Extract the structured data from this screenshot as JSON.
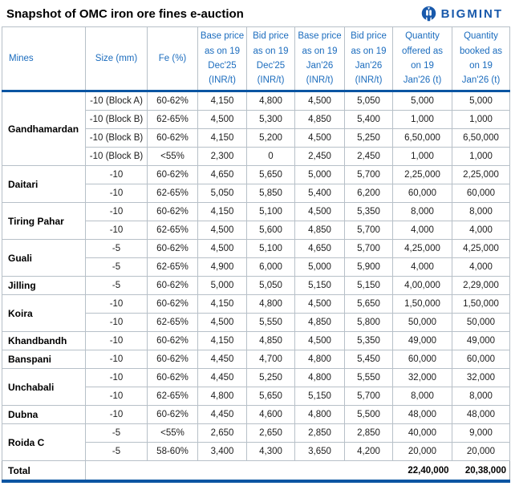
{
  "page": {
    "title": "Snapshot of OMC iron ore fines e-auction"
  },
  "logo": {
    "text": "BIGMINT",
    "color": "#1859ab"
  },
  "colors": {
    "header_text": "#1b6cbe",
    "thick_border": "#0b55a2",
    "inner_border": "#b7c0c8",
    "body_text": "#1d1d1d"
  },
  "table": {
    "headers": {
      "mines": "Mines",
      "size": "Size (mm)",
      "fe": "Fe (%)",
      "base_dec": "Base price\nas on 19\nDec'25\n(INR/t)",
      "bid_dec": "Bid price\nas on 19\nDec'25\n(INR/t)",
      "base_jan": "Base price\nas on 19\nJan'26\n(INR/t)",
      "bid_jan": "Bid price\nas on 19\nJan'26\n(INR/t)",
      "qty_offered": "Quantity\noffered as\non 19\nJan'26 (t)",
      "qty_booked": "Quantity\nbooked as\non 19\nJan'26 (t)"
    },
    "rows": [
      {
        "mine": "Gandhamardan",
        "mine_span": 4,
        "size": "-10 (Block A)",
        "fe": "60-62%",
        "base_dec": "4,150",
        "bid_dec": "4,800",
        "base_jan": "4,500",
        "bid_jan": "5,050",
        "qty_offered": "5,000",
        "qty_booked": "5,000"
      },
      {
        "size": "-10 (Block B)",
        "fe": "62-65%",
        "base_dec": "4,500",
        "bid_dec": "5,300",
        "base_jan": "4,850",
        "bid_jan": "5,400",
        "qty_offered": "1,000",
        "qty_booked": "1,000"
      },
      {
        "size": "-10 (Block B)",
        "fe": "60-62%",
        "base_dec": "4,150",
        "bid_dec": "5,200",
        "base_jan": "4,500",
        "bid_jan": "5,250",
        "qty_offered": "6,50,000",
        "qty_booked": "6,50,000"
      },
      {
        "size": "-10 (Block B)",
        "fe": "<55%",
        "base_dec": "2,300",
        "bid_dec": "0",
        "base_jan": "2,450",
        "bid_jan": "2,450",
        "qty_offered": "1,000",
        "qty_booked": "1,000"
      },
      {
        "mine": "Daitari",
        "mine_span": 2,
        "size": "-10",
        "fe": "60-62%",
        "base_dec": "4,650",
        "bid_dec": "5,650",
        "base_jan": "5,000",
        "bid_jan": "5,700",
        "qty_offered": "2,25,000",
        "qty_booked": "2,25,000"
      },
      {
        "size": "-10",
        "fe": "62-65%",
        "base_dec": "5,050",
        "bid_dec": "5,850",
        "base_jan": "5,400",
        "bid_jan": "6,200",
        "qty_offered": "60,000",
        "qty_booked": "60,000"
      },
      {
        "mine": "Tiring Pahar",
        "mine_span": 2,
        "size": "-10",
        "fe": "60-62%",
        "base_dec": "4,150",
        "bid_dec": "5,100",
        "base_jan": "4,500",
        "bid_jan": "5,350",
        "qty_offered": "8,000",
        "qty_booked": "8,000"
      },
      {
        "size": "-10",
        "fe": "62-65%",
        "base_dec": "4,500",
        "bid_dec": "5,600",
        "base_jan": "4,850",
        "bid_jan": "5,700",
        "qty_offered": "4,000",
        "qty_booked": "4,000"
      },
      {
        "mine": "Guali",
        "mine_span": 2,
        "size": "-5",
        "fe": "60-62%",
        "base_dec": "4,500",
        "bid_dec": "5,100",
        "base_jan": "4,650",
        "bid_jan": "5,700",
        "qty_offered": "4,25,000",
        "qty_booked": "4,25,000"
      },
      {
        "size": "-5",
        "fe": "62-65%",
        "base_dec": "4,900",
        "bid_dec": "6,000",
        "base_jan": "5,000",
        "bid_jan": "5,900",
        "qty_offered": "4,000",
        "qty_booked": "4,000"
      },
      {
        "mine": "Jilling",
        "mine_span": 1,
        "size": "-5",
        "fe": "60-62%",
        "base_dec": "5,000",
        "bid_dec": "5,050",
        "base_jan": "5,150",
        "bid_jan": "5,150",
        "qty_offered": "4,00,000",
        "qty_booked": "2,29,000"
      },
      {
        "mine": "Koira",
        "mine_span": 2,
        "size": "-10",
        "fe": "60-62%",
        "base_dec": "4,150",
        "bid_dec": "4,800",
        "base_jan": "4,500",
        "bid_jan": "5,650",
        "qty_offered": "1,50,000",
        "qty_booked": "1,50,000"
      },
      {
        "size": "-10",
        "fe": "62-65%",
        "base_dec": "4,500",
        "bid_dec": "5,550",
        "base_jan": "4,850",
        "bid_jan": "5,800",
        "qty_offered": "50,000",
        "qty_booked": "50,000"
      },
      {
        "mine": "Khandbandh",
        "mine_span": 1,
        "size": "-10",
        "fe": "60-62%",
        "base_dec": "4,150",
        "bid_dec": "4,850",
        "base_jan": "4,500",
        "bid_jan": "5,350",
        "qty_offered": "49,000",
        "qty_booked": "49,000"
      },
      {
        "mine": "Banspani",
        "mine_span": 1,
        "size": "-10",
        "fe": "60-62%",
        "base_dec": "4,450",
        "bid_dec": "4,700",
        "base_jan": "4,800",
        "bid_jan": "5,450",
        "qty_offered": "60,000",
        "qty_booked": "60,000"
      },
      {
        "mine": "Unchabali",
        "mine_span": 2,
        "size": "-10",
        "fe": "60-62%",
        "base_dec": "4,450",
        "bid_dec": "5,250",
        "base_jan": "4,800",
        "bid_jan": "5,550",
        "qty_offered": "32,000",
        "qty_booked": "32,000"
      },
      {
        "size": "-10",
        "fe": "62-65%",
        "base_dec": "4,800",
        "bid_dec": "5,650",
        "base_jan": "5,150",
        "bid_jan": "5,700",
        "qty_offered": "8,000",
        "qty_booked": "8,000"
      },
      {
        "mine": "Dubna",
        "mine_span": 1,
        "size": "-10",
        "fe": "60-62%",
        "base_dec": "4,450",
        "bid_dec": "4,600",
        "base_jan": "4,800",
        "bid_jan": "5,500",
        "qty_offered": "48,000",
        "qty_booked": "48,000"
      },
      {
        "mine": "Roida C",
        "mine_span": 2,
        "size": "-5",
        "fe": "<55%",
        "base_dec": "2,650",
        "bid_dec": "2,650",
        "base_jan": "2,850",
        "bid_jan": "2,850",
        "qty_offered": "40,000",
        "qty_booked": "9,000"
      },
      {
        "size": "-5",
        "fe": "58-60%",
        "base_dec": "3,400",
        "bid_dec": "4,300",
        "base_jan": "3,650",
        "bid_jan": "4,200",
        "qty_offered": "20,000",
        "qty_booked": "20,000"
      }
    ],
    "total": {
      "label": "Total",
      "qty_offered": "22,40,000",
      "qty_booked": "20,38,000"
    }
  }
}
